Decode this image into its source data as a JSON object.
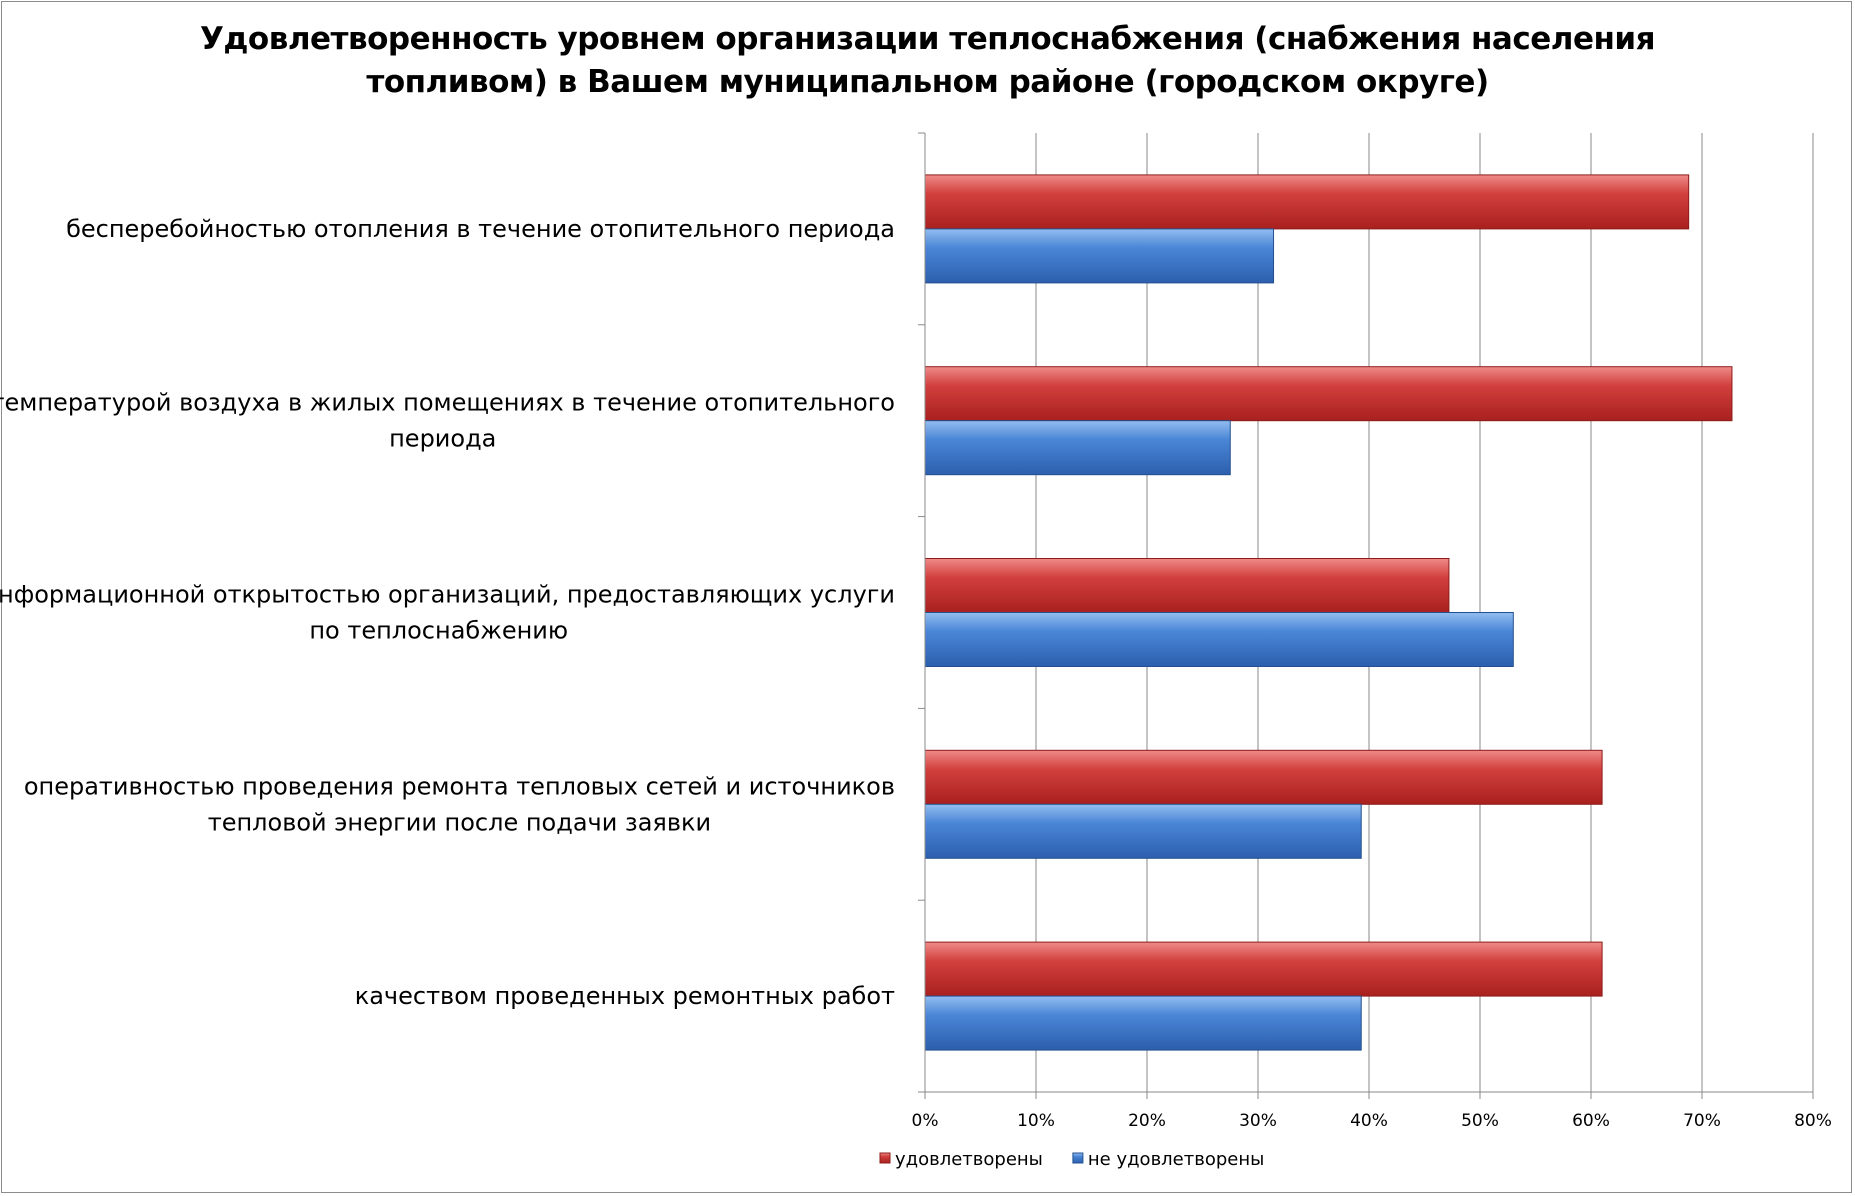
{
  "chart_data": {
    "type": "bar",
    "orientation": "horizontal",
    "title_lines": [
      "Удовлетворенность уровнем организации теплоснабжения (снабжения населения",
      "топливом) в Вашем муниципальном районе (городском округе)"
    ],
    "categories": [
      [
        "бесперебойностью  отопления в течение отопительного периода"
      ],
      [
        "температурой  воздуха в жилых помещениях в течение отопительного",
        "периода"
      ],
      [
        "информационной открытостью  организаций, предоставляющих услуги",
        "по теплоснабжению"
      ],
      [
        "оперативностью проведения ремонта тепловых сетей и источников",
        "тепловой энергии после подачи заявки"
      ],
      [
        "качеством  проведенных  ремонтных  работ"
      ]
    ],
    "series": [
      {
        "name": "удовлетворены",
        "color": "#c0302e",
        "values": [
          68.8,
          72.7,
          47.2,
          61.0,
          61.0
        ]
      },
      {
        "name": "не удовлетворены",
        "color": "#3a73c4",
        "values": [
          31.4,
          27.5,
          53.0,
          39.3,
          39.3
        ]
      }
    ],
    "xlim": [
      0,
      80
    ],
    "xticks": [
      0,
      10,
      20,
      30,
      40,
      50,
      60,
      70,
      80
    ],
    "tick_suffix": "%",
    "grid": true,
    "legend_position": "bottom"
  }
}
